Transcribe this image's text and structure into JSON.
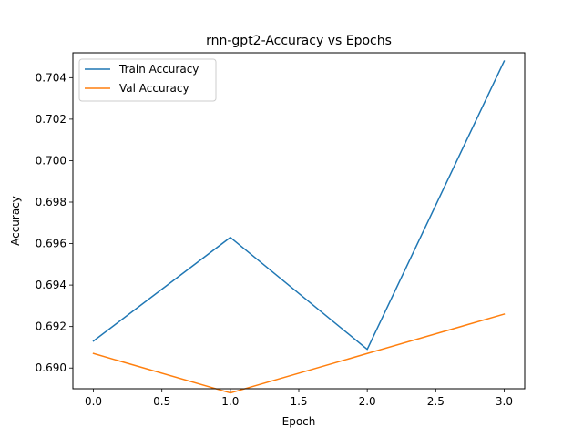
{
  "chart_data": {
    "type": "line",
    "title": "rnn-gpt2-Accuracy vs Epochs",
    "xlabel": "Epoch",
    "ylabel": "Accuracy",
    "x": [
      0,
      1,
      2,
      3
    ],
    "xlim": [
      -0.15,
      3.15
    ],
    "ylim": [
      0.689,
      0.7052
    ],
    "xticks": [
      "0.0",
      "0.5",
      "1.0",
      "1.5",
      "2.0",
      "2.5",
      "3.0"
    ],
    "yticks": [
      "0.690",
      "0.692",
      "0.694",
      "0.696",
      "0.698",
      "0.700",
      "0.702",
      "0.704"
    ],
    "grid": false,
    "legend_position": "top-left",
    "series": [
      {
        "name": "Train Accuracy",
        "color": "#1f77b4",
        "values": [
          0.6913,
          0.6963,
          0.6909,
          0.7048
        ]
      },
      {
        "name": "Val Accuracy",
        "color": "#ff7f0e",
        "values": [
          0.6907,
          0.6888,
          0.6907,
          0.6926
        ]
      }
    ]
  }
}
